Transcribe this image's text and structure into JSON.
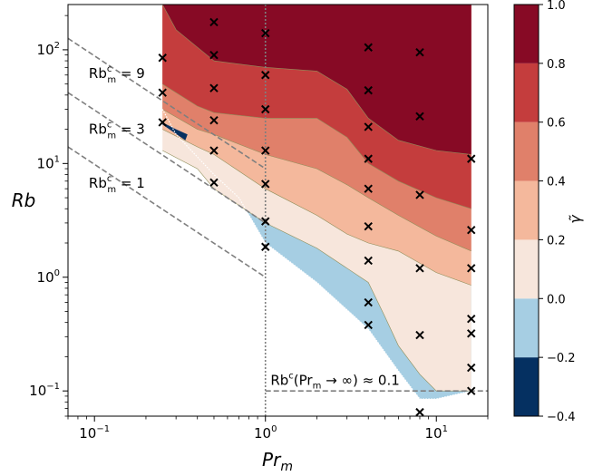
{
  "chart_data": {
    "type": "contourf",
    "xlabel": "Pr",
    "xlabel_sub": "m",
    "ylabel": "Rb",
    "xscale": "log",
    "yscale": "log",
    "xlim": [
      0.07,
      20
    ],
    "ylim": [
      0.06,
      250
    ],
    "x_ticks": [
      {
        "value": 0.1,
        "base": "10",
        "exp": "−1"
      },
      {
        "value": 1,
        "base": "10",
        "exp": "0"
      },
      {
        "value": 10,
        "base": "10",
        "exp": "1"
      }
    ],
    "y_ticks": [
      {
        "value": 0.1,
        "base": "10",
        "exp": "−1"
      },
      {
        "value": 1,
        "base": "10",
        "exp": "0"
      },
      {
        "value": 10,
        "base": "10",
        "exp": "1"
      },
      {
        "value": 100,
        "base": "10",
        "exp": "2"
      }
    ],
    "colorbar": {
      "label": "γ̃",
      "levels": [
        -0.4,
        -0.2,
        0.0,
        0.2,
        0.4,
        0.6,
        0.8,
        1.0
      ],
      "tick_labels": [
        "−0.4",
        "−0.2",
        "0.0",
        "0.2",
        "0.4",
        "0.6",
        "0.8",
        "1.0"
      ],
      "colors": [
        "#053061",
        "#a6cee3",
        "#f7e6dc",
        "#f4b89c",
        "#e0806a",
        "#c43d3d",
        "#870a25"
      ]
    },
    "contour_boundaries": [
      {
        "level": 0.8,
        "points": [
          [
            0.25,
            250
          ],
          [
            0.3,
            150
          ],
          [
            0.5,
            80
          ],
          [
            1,
            70
          ],
          [
            2,
            65
          ],
          [
            3,
            45
          ],
          [
            4,
            25
          ],
          [
            6,
            16
          ],
          [
            10,
            13
          ],
          [
            16,
            12
          ]
        ]
      },
      {
        "level": 0.6,
        "points": [
          [
            0.25,
            50
          ],
          [
            0.4,
            32
          ],
          [
            0.5,
            28
          ],
          [
            1,
            25
          ],
          [
            2,
            25
          ],
          [
            3,
            17
          ],
          [
            4,
            10
          ],
          [
            6,
            7
          ],
          [
            10,
            5
          ],
          [
            16,
            4
          ]
        ]
      },
      {
        "level": 0.4,
        "points": [
          [
            0.25,
            30
          ],
          [
            0.4,
            20
          ],
          [
            0.5,
            18
          ],
          [
            1,
            12
          ],
          [
            2,
            9
          ],
          [
            3,
            6.5
          ],
          [
            4,
            5
          ],
          [
            6,
            3.5
          ],
          [
            10,
            2.3
          ],
          [
            16,
            1.7
          ]
        ]
      },
      {
        "level": 0.2,
        "points": [
          [
            0.25,
            20
          ],
          [
            0.4,
            14
          ],
          [
            0.5,
            12
          ],
          [
            1,
            6
          ],
          [
            2,
            3.5
          ],
          [
            3,
            2.4
          ],
          [
            4,
            2
          ],
          [
            6,
            1.7
          ],
          [
            10,
            1.1
          ],
          [
            16,
            0.85
          ]
        ]
      },
      {
        "level": 0.0,
        "points": [
          [
            0.25,
            13
          ],
          [
            0.4,
            9
          ],
          [
            0.5,
            6
          ],
          [
            1,
            3
          ],
          [
            2,
            1.8
          ],
          [
            4,
            0.9
          ],
          [
            5,
            0.45
          ],
          [
            6,
            0.25
          ],
          [
            8,
            0.14
          ],
          [
            10,
            0.1
          ],
          [
            16,
            0.1
          ]
        ]
      },
      {
        "level": -0.2,
        "points": [
          [
            0.25,
            23
          ],
          [
            0.3,
            20
          ],
          [
            0.35,
            18
          ]
        ]
      }
    ],
    "blue_edge": [
      [
        0.25,
        30
      ],
      [
        0.3,
        18
      ],
      [
        0.5,
        8
      ],
      [
        0.7,
        5
      ],
      [
        1,
        2
      ],
      [
        2,
        0.9
      ],
      [
        4,
        0.35
      ],
      [
        6,
        0.15
      ],
      [
        8,
        0.085
      ],
      [
        10,
        0.085
      ],
      [
        16,
        0.1
      ]
    ],
    "points": [
      {
        "x": 0.25,
        "y": 85
      },
      {
        "x": 0.25,
        "y": 42
      },
      {
        "x": 0.25,
        "y": 23
      },
      {
        "x": 0.5,
        "y": 175
      },
      {
        "x": 0.5,
        "y": 90
      },
      {
        "x": 0.5,
        "y": 46
      },
      {
        "x": 0.5,
        "y": 24
      },
      {
        "x": 0.5,
        "y": 13
      },
      {
        "x": 0.5,
        "y": 6.8
      },
      {
        "x": 1,
        "y": 140
      },
      {
        "x": 1,
        "y": 60
      },
      {
        "x": 1,
        "y": 30
      },
      {
        "x": 1,
        "y": 13
      },
      {
        "x": 1,
        "y": 6.6
      },
      {
        "x": 1,
        "y": 3.1
      },
      {
        "x": 1,
        "y": 1.85
      },
      {
        "x": 4,
        "y": 105
      },
      {
        "x": 4,
        "y": 44
      },
      {
        "x": 4,
        "y": 21
      },
      {
        "x": 4,
        "y": 11
      },
      {
        "x": 4,
        "y": 6
      },
      {
        "x": 4,
        "y": 2.8
      },
      {
        "x": 4,
        "y": 1.4
      },
      {
        "x": 4,
        "y": 0.6
      },
      {
        "x": 4,
        "y": 0.38
      },
      {
        "x": 8,
        "y": 95
      },
      {
        "x": 8,
        "y": 26
      },
      {
        "x": 8,
        "y": 5.3
      },
      {
        "x": 8,
        "y": 1.2
      },
      {
        "x": 8,
        "y": 0.31
      },
      {
        "x": 8,
        "y": 0.065
      },
      {
        "x": 16,
        "y": 11
      },
      {
        "x": 16,
        "y": 2.6
      },
      {
        "x": 16,
        "y": 1.2
      },
      {
        "x": 16,
        "y": 0.43
      },
      {
        "x": 16,
        "y": 0.32
      },
      {
        "x": 16,
        "y": 0.16
      },
      {
        "x": 16,
        "y": 0.1
      }
    ],
    "dashed_lines": [
      {
        "name": "Rb_m^c = 9",
        "label_main": "Rb",
        "label_sup": "c",
        "label_sub": "m",
        "label_rest": " = 9",
        "from": [
          0.07,
          126
        ],
        "to": [
          1,
          9
        ],
        "label_at": [
          0.08,
          62
        ]
      },
      {
        "name": "Rb_m^c = 3",
        "label_main": "Rb",
        "label_sup": "c",
        "label_sub": "m",
        "label_rest": " = 3",
        "from": [
          0.07,
          42
        ],
        "to": [
          1,
          3
        ],
        "label_at": [
          0.08,
          20
        ]
      },
      {
        "name": "Rb_m^c = 1",
        "label_main": "Rb",
        "label_sup": "c",
        "label_sub": "m",
        "label_rest": " = 1",
        "from": [
          0.07,
          14
        ],
        "to": [
          1,
          1
        ],
        "label_at": [
          0.08,
          6.7
        ]
      }
    ],
    "vertical_line": {
      "x": 1
    },
    "asymptote_line": {
      "y": 0.1,
      "from_x": 1,
      "to_x": 20
    },
    "asymptote_label": {
      "text": "Rb",
      "sup": "c",
      "mid": "(Pr",
      "sub": "m",
      "rest": " → ∞) ≈ 0.1",
      "at": [
        1.02,
        0.103
      ]
    }
  }
}
